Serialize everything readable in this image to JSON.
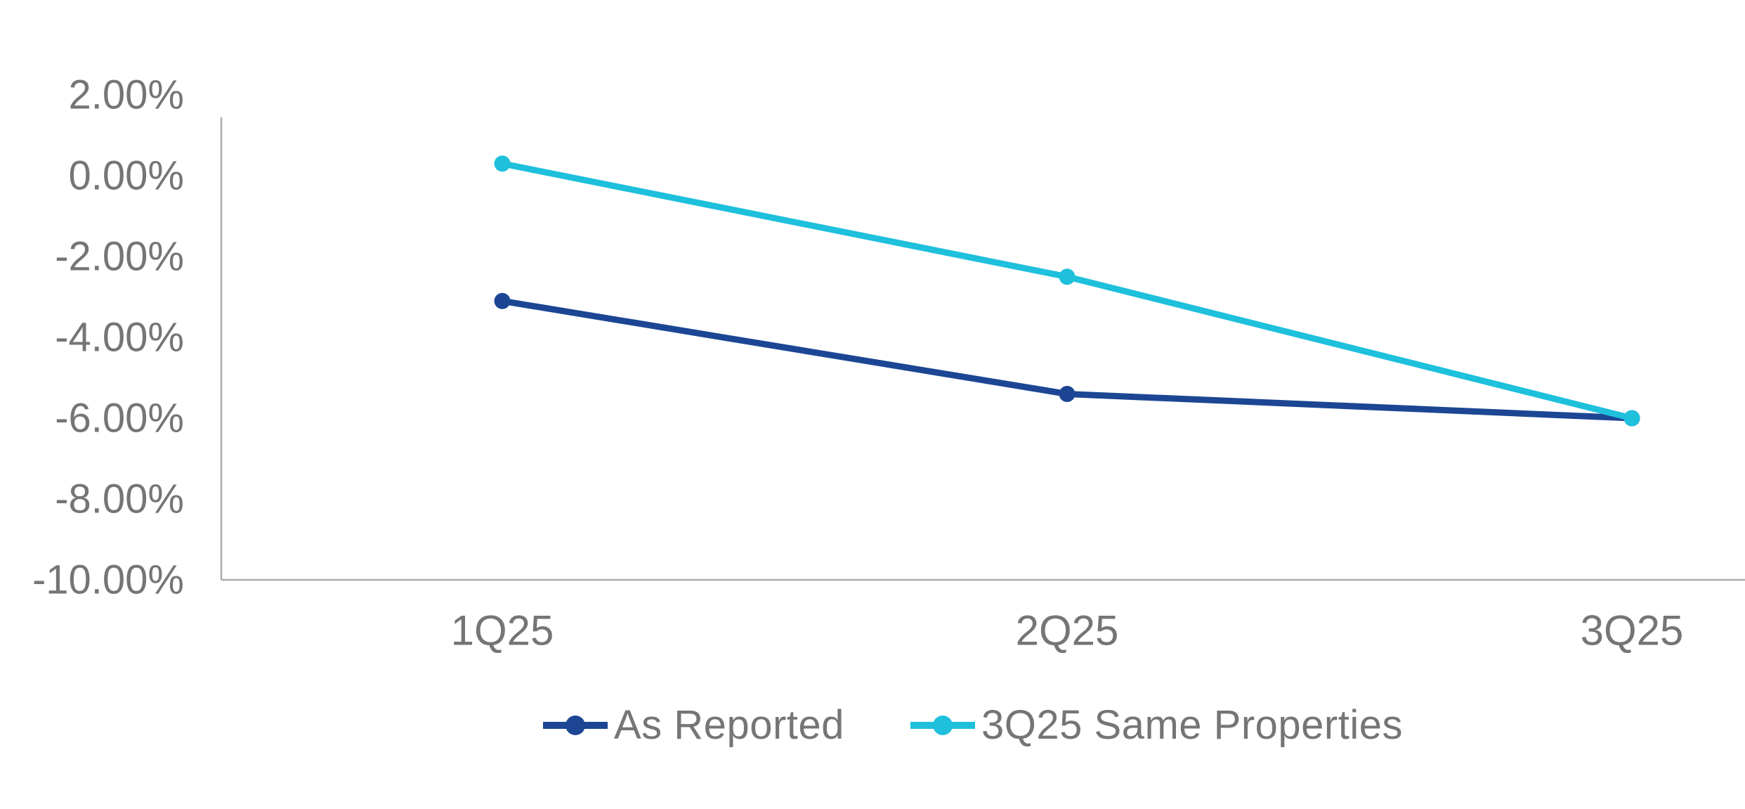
{
  "chart_data": {
    "type": "line",
    "categories": [
      "1Q25",
      "2Q25",
      "3Q25"
    ],
    "series": [
      {
        "name": "As Reported",
        "values": [
          -3.1,
          -5.4,
          -6.0
        ],
        "color": "#1c4693"
      },
      {
        "name": "3Q25 Same Properties",
        "values": [
          0.3,
          -2.5,
          -6.0
        ],
        "color": "#1ec0dc"
      }
    ],
    "ylim": [
      -10,
      2
    ],
    "ytick_step": 2,
    "ytick_labels": [
      "2.00%",
      "0.00%",
      "-2.00%",
      "-4.00%",
      "-6.00%",
      "-8.00%",
      "-10.00%"
    ],
    "xlabel": "",
    "ylabel": "",
    "grid": false,
    "legend_position": "bottom",
    "marker_style": "circle",
    "colors": {
      "axis_line": "#ababab",
      "tick_label": "#757575",
      "background": "#ffffff"
    }
  }
}
